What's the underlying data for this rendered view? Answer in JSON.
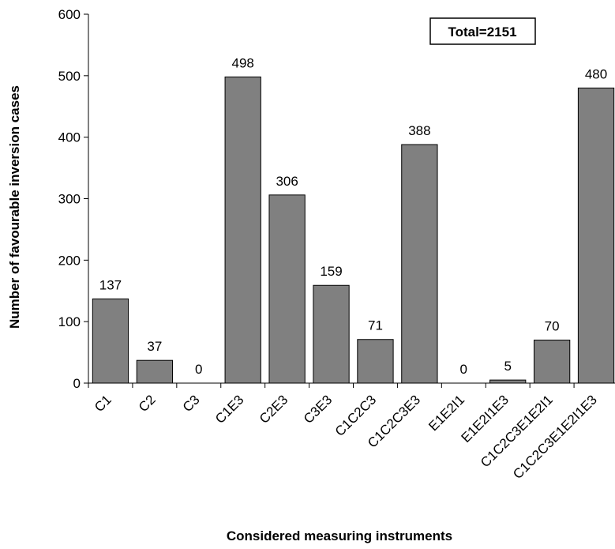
{
  "chart_data": {
    "type": "bar",
    "categories": [
      "C1",
      "C2",
      "C3",
      "C1E3",
      "C2E3",
      "C3E3",
      "C1C2C3",
      "C1C2C3E3",
      "E1E2I1",
      "E1E2I1E3",
      "C1C2C3E1E2I1",
      "C1C2C3E1E2I1E3"
    ],
    "values": [
      137,
      37,
      0,
      498,
      306,
      159,
      71,
      388,
      0,
      5,
      70,
      480
    ],
    "data_labels": [
      "137",
      "37",
      "0",
      "498",
      "306",
      "159",
      "71",
      "388",
      "0",
      "5",
      "70",
      "480"
    ],
    "title": "",
    "xlabel": "Considered measuring instruments",
    "ylabel": "Number of favourable inversion cases",
    "ylim": [
      0,
      600
    ],
    "yticks": [
      0,
      100,
      200,
      300,
      400,
      500,
      600
    ],
    "grid": false,
    "legend": "none",
    "annotation": "Total=2151",
    "bar_color": "#808080",
    "bar_edge_color": "#000000"
  }
}
